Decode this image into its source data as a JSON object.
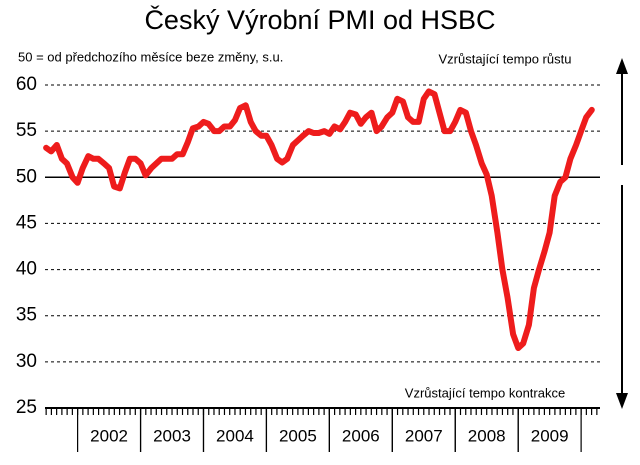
{
  "chart_data": {
    "type": "line",
    "title": "Český Výrobní PMI od HSBC",
    "subtitle": "50 = od předchozího měsíce beze změny, s.u.",
    "annotations": [
      "Vzrůstající tempo růstu",
      "Vzrůstající tempo kontrakce"
    ],
    "color": "#ee1c1c",
    "x": [
      2001.5,
      2001.58,
      2001.67,
      2001.75,
      2001.83,
      2001.92,
      2002,
      2002.08,
      2002.17,
      2002.25,
      2002.33,
      2002.42,
      2002.5,
      2002.58,
      2002.67,
      2002.75,
      2002.83,
      2002.92,
      2003,
      2003.08,
      2003.17,
      2003.25,
      2003.33,
      2003.42,
      2003.5,
      2003.58,
      2003.67,
      2003.75,
      2003.83,
      2003.92,
      2004,
      2004.08,
      2004.17,
      2004.25,
      2004.33,
      2004.42,
      2004.5,
      2004.58,
      2004.67,
      2004.75,
      2004.83,
      2004.92,
      2005,
      2005.08,
      2005.17,
      2005.25,
      2005.33,
      2005.42,
      2005.5,
      2005.58,
      2005.67,
      2005.75,
      2005.83,
      2005.92,
      2006,
      2006.08,
      2006.17,
      2006.25,
      2006.33,
      2006.42,
      2006.5,
      2006.58,
      2006.67,
      2006.75,
      2006.83,
      2006.92,
      2007,
      2007.08,
      2007.17,
      2007.25,
      2007.33,
      2007.42,
      2007.5,
      2007.58,
      2007.67,
      2007.75,
      2007.83,
      2007.92,
      2008,
      2008.08,
      2008.17,
      2008.25,
      2008.33,
      2008.42,
      2008.5,
      2008.58,
      2008.67,
      2008.75,
      2008.83,
      2008.92,
      2009,
      2009.08,
      2009.17,
      2009.25,
      2009.33,
      2009.42,
      2009.5,
      2009.58,
      2009.67,
      2009.75,
      2009.83,
      2009.92,
      2010,
      2010.08,
      2010.17
    ],
    "values": [
      53.2,
      52.8,
      53.5,
      52,
      51.5,
      50,
      49.4,
      51,
      52.3,
      52,
      52,
      51.5,
      51,
      49,
      48.8,
      50.5,
      52,
      52,
      51.5,
      50.2,
      51,
      51.5,
      52,
      52,
      52,
      52.5,
      52.5,
      53.8,
      55.3,
      55.5,
      56,
      55.8,
      55,
      55,
      55.5,
      55.5,
      56.2,
      57.5,
      57.8,
      56,
      55,
      54.5,
      54.5,
      53.5,
      52,
      51.6,
      52,
      53.5,
      54,
      54.5,
      55,
      54.8,
      54.8,
      55,
      54.7,
      55.5,
      55.2,
      56,
      57,
      56.8,
      55.8,
      56.5,
      57,
      55,
      55.5,
      56.5,
      57,
      58.5,
      58.2,
      56.5,
      56,
      56,
      58.5,
      59.3,
      59,
      57,
      55,
      55,
      56,
      57.3,
      57,
      55,
      53.5,
      51.5,
      50.3,
      48,
      44,
      40,
      37,
      33,
      31.5,
      32,
      34,
      38,
      40,
      42,
      44,
      48,
      49.5,
      50,
      52,
      53.5,
      55,
      56.5,
      57.3
    ],
    "xlim": [
      2001.45,
      2010.3
    ],
    "xticks": [
      {
        "value": 2002.5,
        "label": "2002"
      },
      {
        "value": 2003.5,
        "label": "2003"
      },
      {
        "value": 2004.5,
        "label": "2004"
      },
      {
        "value": 2005.5,
        "label": "2005"
      },
      {
        "value": 2006.5,
        "label": "2006"
      },
      {
        "value": 2007.5,
        "label": "2007"
      },
      {
        "value": 2008.5,
        "label": "2008"
      },
      {
        "value": 2009.5,
        "label": "2009"
      }
    ],
    "ylim": [
      25,
      60
    ],
    "yticks": [
      25,
      30,
      35,
      40,
      45,
      50,
      55,
      60
    ],
    "hline": 50,
    "grid": true
  }
}
